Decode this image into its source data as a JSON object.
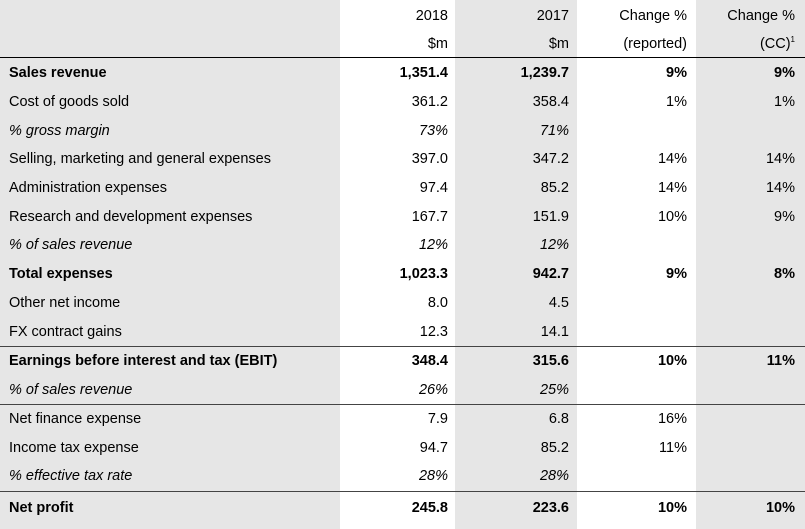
{
  "header": {
    "row1": {
      "y2018": "2018",
      "y2017": "2017",
      "reported": "Change %",
      "cc": "Change %"
    },
    "row2": {
      "y2018": "$m",
      "y2017": "$m",
      "reported": "(reported)",
      "cc": "(CC)",
      "cc_sup": "1"
    }
  },
  "rows": [
    {
      "label": "Sales revenue",
      "y2018": "1,351.4",
      "y2017": "1,239.7",
      "reported": "9%",
      "cc": "9%",
      "style": "bold"
    },
    {
      "label": "Cost of goods sold",
      "y2018": "361.2",
      "y2017": "358.4",
      "reported": "1%",
      "cc": "1%",
      "style": "normal"
    },
    {
      "label": "% gross margin",
      "y2018": "73%",
      "y2017": "71%",
      "reported": "",
      "cc": "",
      "style": "italic"
    },
    {
      "label": "Selling, marketing and general expenses",
      "y2018": "397.0",
      "y2017": "347.2",
      "reported": "14%",
      "cc": "14%",
      "style": "normal"
    },
    {
      "label": "Administration expenses",
      "y2018": "97.4",
      "y2017": "85.2",
      "reported": "14%",
      "cc": "14%",
      "style": "normal"
    },
    {
      "label": "Research and development expenses",
      "y2018": "167.7",
      "y2017": "151.9",
      "reported": "10%",
      "cc": "9%",
      "style": "normal"
    },
    {
      "label": "% of sales revenue",
      "y2018": "12%",
      "y2017": "12%",
      "reported": "",
      "cc": "",
      "style": "italic"
    },
    {
      "label": "Total expenses",
      "y2018": "1,023.3",
      "y2017": "942.7",
      "reported": "9%",
      "cc": "8%",
      "style": "bold"
    },
    {
      "label": "Other net income",
      "y2018": "8.0",
      "y2017": "4.5",
      "reported": "",
      "cc": "",
      "style": "normal"
    },
    {
      "label": "FX contract gains",
      "y2018": "12.3",
      "y2017": "14.1",
      "reported": "",
      "cc": "",
      "style": "normal"
    },
    {
      "label": "Earnings before interest and tax (EBIT)",
      "y2018": "348.4",
      "y2017": "315.6",
      "reported": "10%",
      "cc": "11%",
      "style": "bold"
    },
    {
      "label": "% of sales revenue",
      "y2018": "26%",
      "y2017": "25%",
      "reported": "",
      "cc": "",
      "style": "italic"
    },
    {
      "label": "Net finance expense",
      "y2018": "7.9",
      "y2017": "6.8",
      "reported": "16%",
      "cc": "",
      "style": "normal"
    },
    {
      "label": "Income tax expense",
      "y2018": "94.7",
      "y2017": "85.2",
      "reported": "11%",
      "cc": "",
      "style": "normal"
    },
    {
      "label": "% effective tax rate",
      "y2018": "28%",
      "y2017": "28%",
      "reported": "",
      "cc": "",
      "style": "italic"
    },
    {
      "label": "Net profit",
      "y2018": "245.8",
      "y2017": "223.6",
      "reported": "10%",
      "cc": "10%",
      "style": "bold"
    }
  ],
  "colors": {
    "shade": "#e6e6e6",
    "white": "#ffffff",
    "rule": "#000000"
  }
}
